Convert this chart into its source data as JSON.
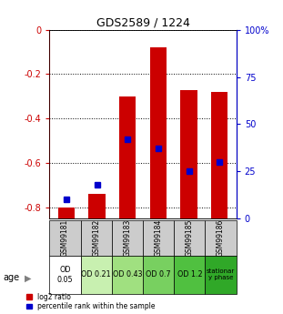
{
  "title": "GDS2589 / 1224",
  "samples": [
    "GSM99181",
    "GSM99182",
    "GSM99183",
    "GSM99184",
    "GSM99185",
    "GSM99186"
  ],
  "log2_ratio": [
    -0.8,
    -0.74,
    -0.3,
    -0.08,
    -0.27,
    -0.28
  ],
  "percentile_rank_pct": [
    10,
    18,
    42,
    37,
    25,
    30
  ],
  "bar_color": "#cc0000",
  "dot_color": "#0000cc",
  "ylim_left": [
    -0.85,
    0.0
  ],
  "ylim_right": [
    0,
    100
  ],
  "yticks_left": [
    0,
    -0.2,
    -0.4,
    -0.6,
    -0.8
  ],
  "yticks_right": [
    0,
    25,
    50,
    75,
    100
  ],
  "ytick_labels_left": [
    "0",
    "-0.2",
    "-0.4",
    "-0.6",
    "-0.8"
  ],
  "ytick_labels_right": [
    "0",
    "25",
    "50",
    "75",
    "100%"
  ],
  "age_labels": [
    "OD\n0.05",
    "OD 0.21",
    "OD 0.43",
    "OD 0.7",
    "OD 1.2",
    "stationar\ny phase"
  ],
  "age_bg_colors": [
    "#ffffff",
    "#c8f0b0",
    "#a0e080",
    "#78d060",
    "#50c040",
    "#30a828"
  ],
  "sample_bg_color": "#cccccc",
  "left_tick_color": "#cc0000",
  "right_tick_color": "#0000cc",
  "bar_width": 0.55,
  "bar_bottom": -0.85
}
